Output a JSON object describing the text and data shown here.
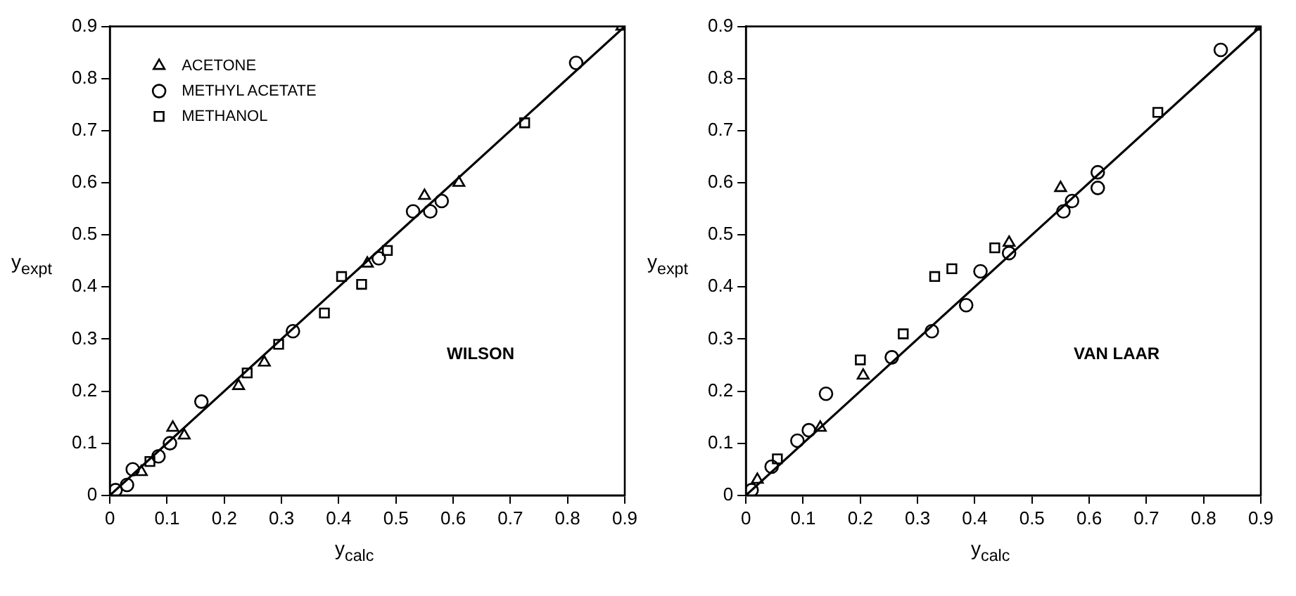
{
  "chart_data": [
    {
      "type": "scatter",
      "xlabel": "y$_{calc}$",
      "ylabel": "y$_{expt}$",
      "annotations": [
        "WILSON"
      ],
      "xlim": [
        0,
        0.9
      ],
      "ylim": [
        0,
        0.9
      ],
      "xticks": [
        0,
        0.1,
        0.2,
        0.3,
        0.4,
        0.5,
        0.6,
        0.7,
        0.8,
        0.9
      ],
      "yticks": [
        0,
        0.1,
        0.2,
        0.3,
        0.4,
        0.5,
        0.6,
        0.7,
        0.8,
        0.9
      ],
      "grid": false,
      "legend": "top left",
      "series": [
        {
          "name": "ACETONE",
          "color": "#000000",
          "marker": "triangle",
          "x": [
            0.055,
            0.11,
            0.13,
            0.225,
            0.27,
            0.45,
            0.55,
            0.61,
            0.895
          ],
          "values": [
            0.045,
            0.13,
            0.115,
            0.21,
            0.255,
            0.445,
            0.575,
            0.6,
            0.9
          ]
        },
        {
          "name": "METHYL ACETATE",
          "color": "#000000",
          "marker": "circle",
          "x": [
            0.01,
            0.03,
            0.04,
            0.085,
            0.105,
            0.16,
            0.32,
            0.47,
            0.53,
            0.56,
            0.58,
            0.815
          ],
          "values": [
            0.01,
            0.02,
            0.05,
            0.075,
            0.1,
            0.18,
            0.315,
            0.455,
            0.545,
            0.545,
            0.565,
            0.83
          ]
        },
        {
          "name": "METHANOL",
          "color": "#000000",
          "marker": "square",
          "x": [
            0.07,
            0.24,
            0.295,
            0.375,
            0.405,
            0.44,
            0.485,
            0.725
          ],
          "values": [
            0.065,
            0.235,
            0.29,
            0.35,
            0.42,
            0.405,
            0.47,
            0.715
          ]
        },
        {
          "type": "line",
          "color": "#000000",
          "marker": "none",
          "x": [
            0,
            0.9
          ],
          "values": [
            0,
            0.9
          ]
        }
      ]
    },
    {
      "type": "scatter",
      "xlabel": "y$_{calc}$",
      "ylabel": "y$_{expt}$",
      "annotations": [
        "VAN LAAR"
      ],
      "xlim": [
        0,
        0.9
      ],
      "ylim": [
        0,
        0.9
      ],
      "xticks": [
        0,
        0.1,
        0.2,
        0.3,
        0.4,
        0.5,
        0.6,
        0.7,
        0.8,
        0.9
      ],
      "yticks": [
        0,
        0.1,
        0.2,
        0.3,
        0.4,
        0.5,
        0.6,
        0.7,
        0.8,
        0.9
      ],
      "grid": false,
      "series": [
        {
          "color": "#000000",
          "marker": "triangle",
          "x": [
            0.02,
            0.13,
            0.205,
            0.46,
            0.55,
            0.9
          ],
          "values": [
            0.03,
            0.13,
            0.23,
            0.485,
            0.59,
            0.9
          ]
        },
        {
          "color": "#000000",
          "marker": "circle",
          "x": [
            0.01,
            0.045,
            0.09,
            0.11,
            0.14,
            0.255,
            0.325,
            0.385,
            0.41,
            0.46,
            0.555,
            0.57,
            0.615,
            0.615,
            0.83
          ],
          "values": [
            0.01,
            0.055,
            0.105,
            0.125,
            0.195,
            0.265,
            0.315,
            0.365,
            0.43,
            0.465,
            0.545,
            0.565,
            0.59,
            0.62,
            0.855
          ]
        },
        {
          "color": "#000000",
          "marker": "square",
          "x": [
            0.055,
            0.2,
            0.275,
            0.33,
            0.36,
            0.435,
            0.72
          ],
          "values": [
            0.07,
            0.26,
            0.31,
            0.42,
            0.435,
            0.475,
            0.735
          ]
        },
        {
          "type": "line",
          "color": "#000000",
          "marker": "none",
          "x": [
            0,
            0.9
          ],
          "values": [
            0,
            0.9
          ]
        }
      ]
    }
  ]
}
